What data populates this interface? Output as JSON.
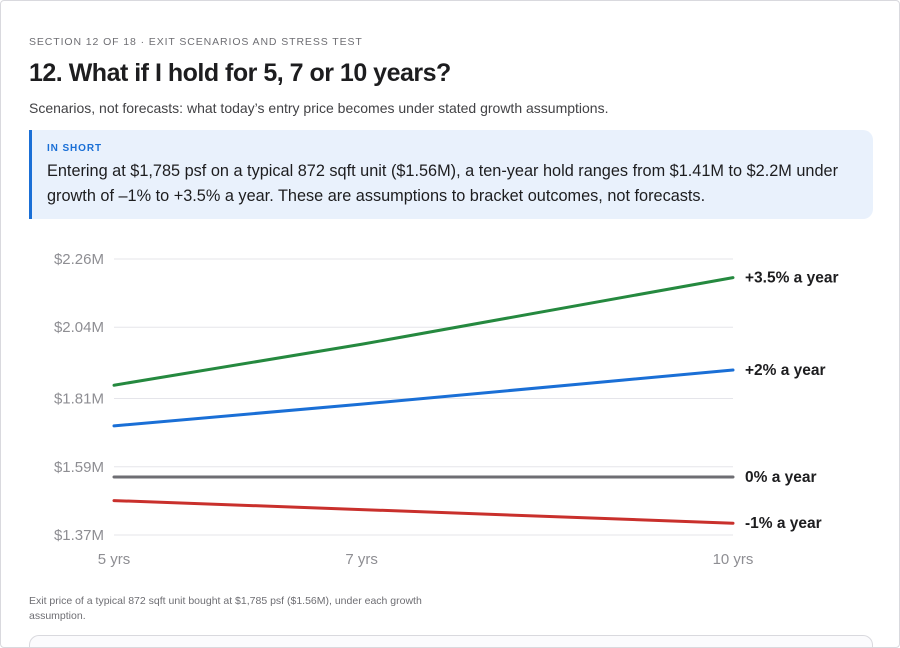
{
  "header": {
    "eyebrow": "SECTION 12 OF 18 · EXIT SCENARIOS AND STRESS TEST",
    "title": "12. What if I hold for 5, 7 or 10 years?",
    "subtitle": "Scenarios, not forecasts: what today’s entry price becomes under stated growth assumptions."
  },
  "callout": {
    "label": "IN SHORT",
    "text": "Entering at $1,785 psf on a typical 872 sqft unit ($1.56M), a ten-year hold ranges from $1.41M to $2.2M under growth of –1% to +3.5% a year. These are assumptions to bracket outcomes, not forecasts."
  },
  "chart_data": {
    "type": "line",
    "x": [
      5,
      7,
      10
    ],
    "x_tick_labels": [
      "5 yrs",
      "7 yrs",
      "10 yrs"
    ],
    "y_tick_values": [
      1.37,
      1.59,
      1.81,
      2.04,
      2.26
    ],
    "y_tick_labels": [
      "$1.37M",
      "$1.59M",
      "$1.81M",
      "$2.04M",
      "$2.26M"
    ],
    "ylim": [
      1.37,
      2.26
    ],
    "grid": true,
    "legend": "end-of-line labels",
    "series": [
      {
        "name": "+3.5% a year",
        "color": "#25893f",
        "values": [
          1.853,
          1.985,
          2.2
        ]
      },
      {
        "name": "+2% a year",
        "color": "#1a6fd6",
        "values": [
          1.722,
          1.792,
          1.902
        ]
      },
      {
        "name": "0% a year",
        "color": "#6e6e73",
        "values": [
          1.557,
          1.557,
          1.557
        ]
      },
      {
        "name": "-1% a year",
        "color": "#c9302c",
        "values": [
          1.481,
          1.452,
          1.408
        ]
      }
    ]
  },
  "caption": "Exit price of a typical 872 sqft unit bought at $1,785 psf ($1.56M), under each growth assumption."
}
